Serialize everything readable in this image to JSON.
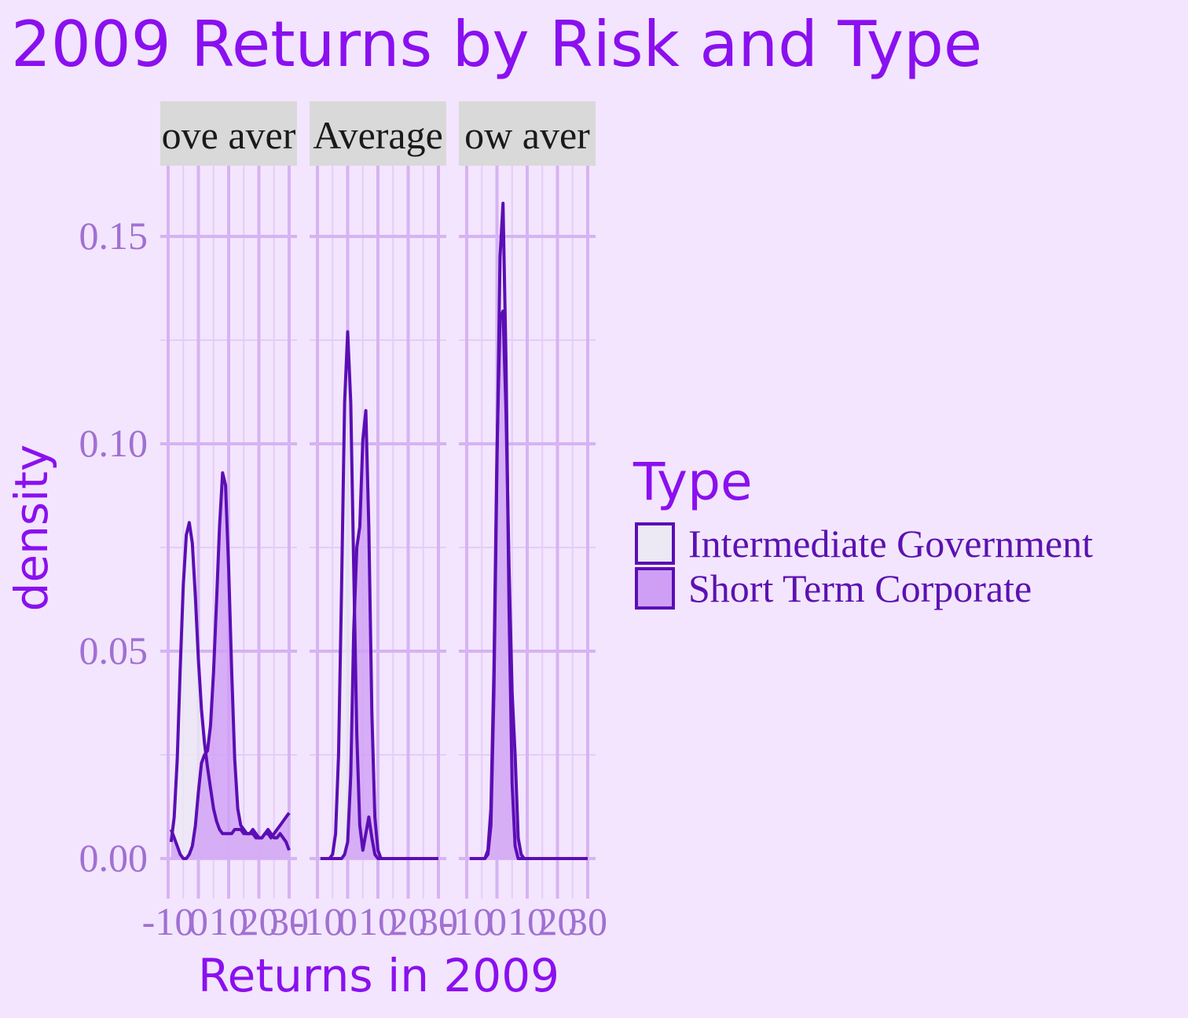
{
  "chart_data": {
    "type": "area",
    "subtype": "density",
    "title": "2009 Returns by Risk and Type",
    "xlabel": "Returns in 2009",
    "ylabel": "density",
    "xlim": [
      -10,
      30
    ],
    "ylim": [
      0,
      0.16
    ],
    "x_ticks": [
      -10,
      0,
      10,
      20,
      30
    ],
    "x_tick_labels": [
      "-10",
      "0",
      "10",
      "20",
      "30"
    ],
    "y_ticks": [
      0,
      0.05,
      0.1,
      0.15
    ],
    "y_tick_labels": [
      "0.00",
      "0.05",
      "0.10",
      "0.15"
    ],
    "grid": true,
    "legend": {
      "title": "Type",
      "placement": "right",
      "entries": [
        "Intermediate Government",
        "Short Term Corporate"
      ]
    },
    "panels": [
      {
        "label": "Above average",
        "strip_text": "ove aver",
        "series": [
          {
            "name": "Intermediate Government",
            "fill": "#ece8f4",
            "x": [
              -9,
              -8,
              -7,
              -6,
              -5,
              -4,
              -3,
              -2,
              -1,
              0,
              1,
              2,
              3,
              4,
              5,
              6,
              7,
              8,
              9,
              10,
              11,
              12,
              13,
              14,
              15,
              16,
              17,
              18,
              19,
              20,
              21,
              22,
              23,
              24,
              25,
              26,
              27,
              28,
              29,
              30
            ],
            "y": [
              0.004,
              0.01,
              0.024,
              0.046,
              0.066,
              0.078,
              0.081,
              0.076,
              0.063,
              0.048,
              0.036,
              0.028,
              0.022,
              0.017,
              0.012,
              0.009,
              0.007,
              0.006,
              0.006,
              0.006,
              0.006,
              0.007,
              0.007,
              0.007,
              0.006,
              0.006,
              0.006,
              0.007,
              0.006,
              0.005,
              0.005,
              0.006,
              0.007,
              0.006,
              0.005,
              0.005,
              0.006,
              0.005,
              0.004,
              0.002
            ]
          },
          {
            "name": "Short Term Corporate",
            "fill": "#cf9ff5",
            "x": [
              -9,
              -8,
              -7,
              -6,
              -5,
              -4,
              -3,
              -2,
              -1,
              0,
              1,
              2,
              3,
              4,
              5,
              6,
              7,
              8,
              9,
              10,
              11,
              12,
              13,
              14,
              15,
              16,
              17,
              18,
              19,
              20,
              21,
              22,
              23,
              24,
              25,
              26,
              27,
              28,
              29,
              30
            ],
            "y": [
              0.007,
              0.005,
              0.003,
              0.001,
              0.0,
              0.0,
              0.001,
              0.003,
              0.008,
              0.016,
              0.023,
              0.025,
              0.026,
              0.032,
              0.045,
              0.062,
              0.08,
              0.093,
              0.09,
              0.07,
              0.045,
              0.024,
              0.012,
              0.008,
              0.007,
              0.006,
              0.006,
              0.006,
              0.005,
              0.005,
              0.005,
              0.006,
              0.006,
              0.005,
              0.006,
              0.007,
              0.008,
              0.009,
              0.01,
              0.011
            ]
          }
        ]
      },
      {
        "label": "Average",
        "strip_text": "Average",
        "series": [
          {
            "name": "Intermediate Government",
            "fill": "#ece8f4",
            "x": [
              -9,
              -8,
              -7,
              -6,
              -5,
              -4,
              -3,
              -2,
              -1,
              0,
              1,
              2,
              3,
              4,
              5,
              6,
              7,
              8,
              9,
              10,
              11,
              12,
              13,
              14,
              15,
              16,
              17,
              18,
              19,
              20,
              21,
              22,
              23,
              24,
              25,
              26,
              27,
              28,
              29,
              30
            ],
            "y": [
              0,
              0,
              0,
              0,
              0.001,
              0.006,
              0.025,
              0.066,
              0.11,
              0.127,
              0.11,
              0.07,
              0.03,
              0.008,
              0.002,
              0.006,
              0.01,
              0.005,
              0.001,
              0,
              0,
              0,
              0,
              0,
              0,
              0,
              0,
              0,
              0,
              0,
              0,
              0,
              0,
              0,
              0,
              0,
              0,
              0,
              0,
              0
            ]
          },
          {
            "name": "Short Term Corporate",
            "fill": "#cf9ff5",
            "x": [
              -9,
              -8,
              -7,
              -6,
              -5,
              -4,
              -3,
              -2,
              -1,
              0,
              1,
              2,
              3,
              4,
              5,
              6,
              7,
              8,
              9,
              10,
              11,
              12,
              13,
              14,
              15,
              16,
              17,
              18,
              19,
              20,
              21,
              22,
              23,
              24,
              25,
              26,
              27,
              28,
              29,
              30
            ],
            "y": [
              0,
              0,
              0,
              0,
              0,
              0,
              0,
              0,
              0.001,
              0.004,
              0.02,
              0.055,
              0.075,
              0.08,
              0.101,
              0.108,
              0.08,
              0.035,
              0.01,
              0.002,
              0,
              0,
              0,
              0,
              0,
              0,
              0,
              0,
              0,
              0,
              0,
              0,
              0,
              0,
              0,
              0,
              0,
              0,
              0,
              0
            ]
          }
        ]
      },
      {
        "label": "Below average",
        "strip_text": "ow aver",
        "series": [
          {
            "name": "Intermediate Government",
            "fill": "#ece8f4",
            "x": [
              -9,
              -8,
              -7,
              -6,
              -5,
              -4,
              -3,
              -2,
              -1,
              0,
              1,
              2,
              3,
              4,
              5,
              6,
              7,
              8,
              9,
              10,
              11,
              12,
              13,
              14,
              15,
              16,
              17,
              18,
              19,
              20,
              21,
              22,
              23,
              24,
              25,
              26,
              27,
              28,
              29,
              30
            ],
            "y": [
              0,
              0,
              0,
              0,
              0,
              0,
              0.001,
              0.008,
              0.04,
              0.095,
              0.145,
              0.158,
              0.12,
              0.06,
              0.018,
              0.003,
              0,
              0,
              0,
              0,
              0,
              0,
              0,
              0,
              0,
              0,
              0,
              0,
              0,
              0,
              0,
              0,
              0,
              0,
              0,
              0,
              0,
              0,
              0,
              0
            ]
          },
          {
            "name": "Short Term Corporate",
            "fill": "#cf9ff5",
            "x": [
              -9,
              -8,
              -7,
              -6,
              -5,
              -4,
              -3,
              -2,
              -1,
              0,
              1,
              2,
              3,
              4,
              5,
              6,
              7,
              8,
              9,
              10,
              11,
              12,
              13,
              14,
              15,
              16,
              17,
              18,
              19,
              20,
              21,
              22,
              23,
              24,
              25,
              26,
              27,
              28,
              29,
              30
            ],
            "y": [
              0,
              0,
              0,
              0,
              0,
              0,
              0.002,
              0.012,
              0.045,
              0.098,
              0.13,
              0.132,
              0.108,
              0.07,
              0.04,
              0.025,
              0.005,
              0.001,
              0,
              0,
              0,
              0,
              0,
              0,
              0,
              0,
              0,
              0,
              0,
              0,
              0,
              0,
              0,
              0,
              0,
              0,
              0,
              0,
              0,
              0
            ]
          }
        ]
      }
    ],
    "colors": {
      "background": "#f3e5fd",
      "grid_major": "#d6b3f2",
      "grid_minor": "#e4cdf7",
      "strip_background": "#d9d9d9",
      "outline": "#5b0eb5"
    }
  }
}
